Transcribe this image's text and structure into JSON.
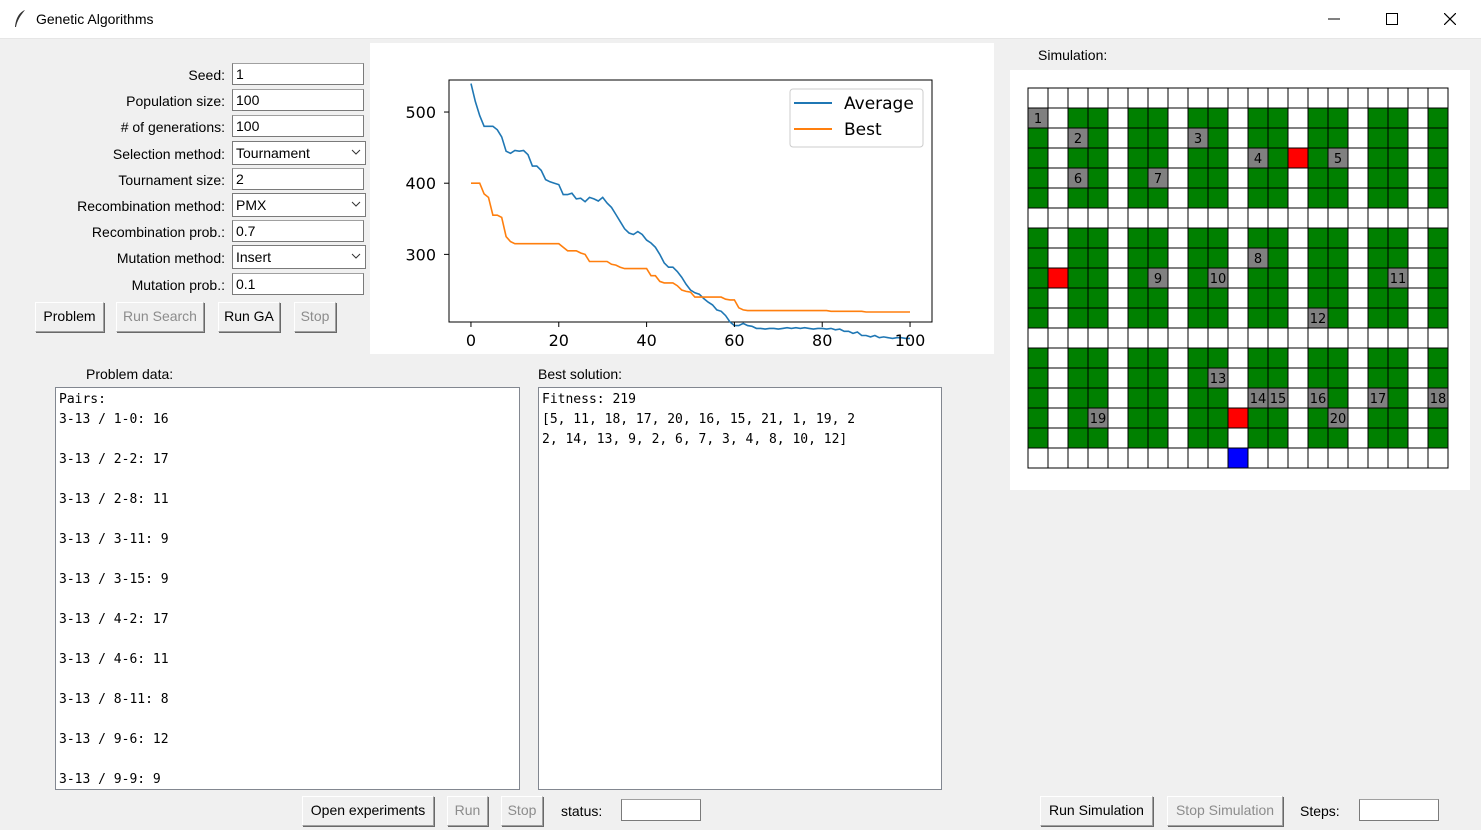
{
  "window": {
    "title": "Genetic Algorithms"
  },
  "colors": {
    "average": "#1f77b4",
    "best": "#ff7f0e",
    "shelf": "#008000",
    "product": "#808080",
    "agent": "#ff0000",
    "exit": "#0000ff"
  },
  "params": [
    {
      "label": "Seed:",
      "value": "1",
      "type": "entry"
    },
    {
      "label": "Population size:",
      "value": "100",
      "type": "entry"
    },
    {
      "label": "# of generations:",
      "value": "100",
      "type": "entry"
    },
    {
      "label": "Selection method:",
      "value": "Tournament",
      "type": "combo"
    },
    {
      "label": "Tournament size:",
      "value": "2",
      "type": "entry"
    },
    {
      "label": "Recombination method:",
      "value": "PMX",
      "type": "combo"
    },
    {
      "label": "Recombination prob.:",
      "value": "0.7",
      "type": "entry"
    },
    {
      "label": "Mutation method:",
      "value": "Insert",
      "type": "combo"
    },
    {
      "label": "Mutation prob.:",
      "value": "0.1",
      "type": "entry"
    }
  ],
  "buttons": {
    "problem": "Problem",
    "run_search": "Run Search",
    "run_ga": "Run GA",
    "stop": "Stop"
  },
  "problem_data": {
    "label": "Problem data:",
    "text": "Pairs:\n3-13 / 1-0: 16\n\n3-13 / 2-2: 17\n\n3-13 / 2-8: 11\n\n3-13 / 3-11: 9\n\n3-13 / 3-15: 9\n\n3-13 / 4-2: 17\n\n3-13 / 4-6: 11\n\n3-13 / 8-11: 8\n\n3-13 / 9-6: 12\n\n3-13 / 9-9: 9"
  },
  "best_solution": {
    "label": "Best solution:",
    "text": "Fitness: 219\n[5, 11, 18, 17, 20, 16, 15, 21, 1, 19, 2\n2, 14, 13, 9, 2, 6, 7, 3, 4, 8, 10, 12]"
  },
  "bottom": {
    "open_experiments": "Open experiments",
    "run": "Run",
    "stop": "Stop",
    "status_label": "status:",
    "status_value": ""
  },
  "simulation": {
    "label": "Simulation:",
    "run_button": "Run Simulation",
    "stop_button": "Stop Simulation",
    "steps_label": "Steps:",
    "steps_value": "",
    "rows": 19,
    "cols": 21,
    "shelf_columns": [
      0,
      2,
      3,
      5,
      6,
      8,
      9,
      11,
      12,
      14,
      15,
      17,
      18,
      20
    ],
    "shelf_row_bands": [
      [
        1,
        5
      ],
      [
        7,
        11
      ],
      [
        13,
        17
      ]
    ],
    "products": [
      {
        "label": "1",
        "row": 1,
        "col": 0
      },
      {
        "label": "2",
        "row": 2,
        "col": 2
      },
      {
        "label": "3",
        "row": 2,
        "col": 8
      },
      {
        "label": "4",
        "row": 3,
        "col": 11
      },
      {
        "label": "5",
        "row": 3,
        "col": 15
      },
      {
        "label": "6",
        "row": 4,
        "col": 2
      },
      {
        "label": "7",
        "row": 4,
        "col": 6
      },
      {
        "label": "8",
        "row": 8,
        "col": 11
      },
      {
        "label": "9",
        "row": 9,
        "col": 6
      },
      {
        "label": "10",
        "row": 9,
        "col": 9
      },
      {
        "label": "11",
        "row": 9,
        "col": 18
      },
      {
        "label": "12",
        "row": 11,
        "col": 14
      },
      {
        "label": "13",
        "row": 14,
        "col": 9
      },
      {
        "label": "14",
        "row": 15,
        "col": 11
      },
      {
        "label": "15",
        "row": 15,
        "col": 12
      },
      {
        "label": "16",
        "row": 15,
        "col": 14
      },
      {
        "label": "17",
        "row": 15,
        "col": 17
      },
      {
        "label": "18",
        "row": 15,
        "col": 20
      },
      {
        "label": "19",
        "row": 16,
        "col": 3
      },
      {
        "label": "20",
        "row": 16,
        "col": 15
      }
    ],
    "agents": [
      {
        "row": 3,
        "col": 13
      },
      {
        "row": 9,
        "col": 1
      },
      {
        "row": 16,
        "col": 10
      }
    ],
    "exit": {
      "row": 18,
      "col": 10
    }
  },
  "chart_data": {
    "type": "line",
    "title": "",
    "xlabel": "",
    "ylabel": "",
    "xlim": [
      -5,
      105
    ],
    "ylim": [
      205,
      545
    ],
    "xticks": [
      0,
      20,
      40,
      60,
      80,
      100
    ],
    "yticks": [
      300,
      400,
      500
    ],
    "legend": "top-right",
    "grid": false,
    "series": [
      {
        "name": "Average",
        "values": [
          540,
          515,
          495,
          480,
          480,
          480,
          475,
          465,
          445,
          442,
          446,
          445,
          446,
          440,
          424,
          424,
          418,
          405,
          402,
          400,
          398,
          384,
          384,
          386,
          378,
          379,
          374,
          380,
          378,
          375,
          380,
          372,
          366,
          356,
          346,
          336,
          330,
          328,
          332,
          328,
          320,
          316,
          310,
          300,
          288,
          282,
          282,
          276,
          268,
          258,
          250,
          246,
          244,
          238,
          233,
          229,
          222,
          220,
          214,
          205,
          200,
          200,
          203,
          200,
          199,
          196,
          196,
          195,
          196,
          196,
          195,
          196,
          197,
          196,
          197,
          196,
          197,
          196,
          195,
          196,
          196,
          195,
          196,
          194,
          195,
          192,
          192,
          189,
          191,
          186,
          186,
          184,
          186,
          183,
          184,
          183,
          182,
          183,
          183,
          182,
          182
        ]
      },
      {
        "name": "Best",
        "values": [
          400,
          400,
          400,
          385,
          380,
          355,
          355,
          352,
          325,
          318,
          315,
          315,
          315,
          315,
          315,
          315,
          315,
          315,
          315,
          315,
          315,
          310,
          305,
          305,
          305,
          302,
          300,
          290,
          290,
          290,
          290,
          290,
          286,
          285,
          282,
          280,
          280,
          280,
          280,
          280,
          280,
          270,
          270,
          262,
          260,
          260,
          260,
          256,
          250,
          248,
          247,
          240,
          240,
          240,
          240,
          240,
          240,
          240,
          237,
          236,
          236,
          225,
          222,
          221,
          221,
          221,
          221,
          221,
          221,
          221,
          221,
          221,
          221,
          221,
          221,
          221,
          221,
          221,
          221,
          221,
          221,
          221,
          220,
          220,
          220,
          220,
          220,
          220,
          220,
          220,
          219,
          219,
          219,
          219,
          219,
          219,
          219,
          219,
          219,
          219,
          219
        ]
      }
    ]
  }
}
